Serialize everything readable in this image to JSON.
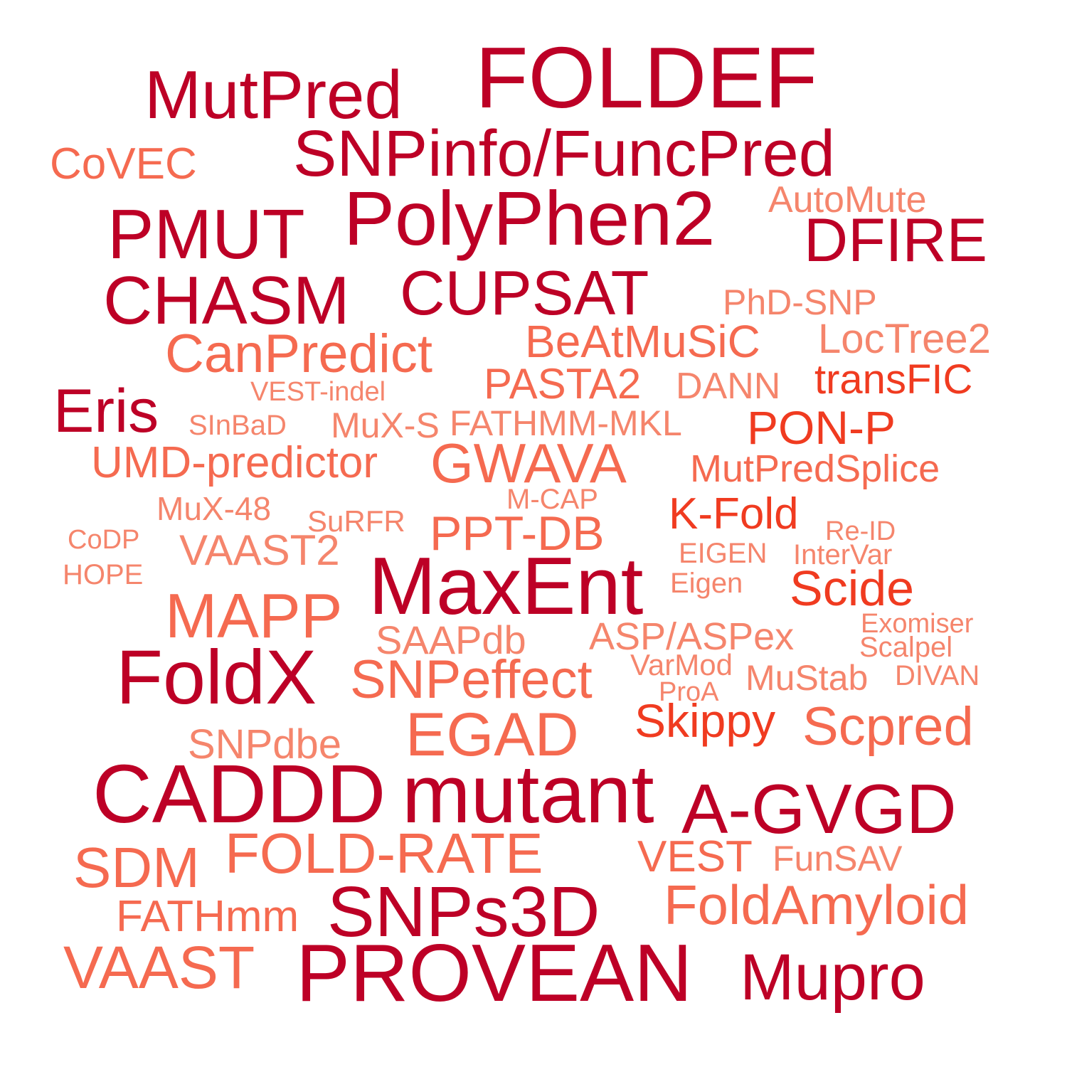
{
  "palette": {
    "dark": "#bd0026",
    "mid": "#f03b20",
    "light": "#f56a50",
    "pale": "#f5856c",
    "background": "#ffffff"
  },
  "words": [
    {
      "text": "FOLDEF",
      "tier": "dark"
    },
    {
      "text": "MutPred",
      "tier": "dark"
    },
    {
      "text": "SNPinfo/FuncPred",
      "tier": "dark"
    },
    {
      "text": "CoVEC",
      "tier": "light"
    },
    {
      "text": "AutoMute",
      "tier": "pale"
    },
    {
      "text": "PMUT",
      "tier": "dark"
    },
    {
      "text": "PolyPhen2",
      "tier": "dark"
    },
    {
      "text": "DFIRE",
      "tier": "dark"
    },
    {
      "text": "CHASM",
      "tier": "dark"
    },
    {
      "text": "CUPSAT",
      "tier": "dark"
    },
    {
      "text": "PhD-SNP",
      "tier": "pale"
    },
    {
      "text": "CanPredict",
      "tier": "light"
    },
    {
      "text": "BeAtMuSiC",
      "tier": "light"
    },
    {
      "text": "LocTree2",
      "tier": "pale"
    },
    {
      "text": "transFIC",
      "tier": "mid"
    },
    {
      "text": "PASTA2",
      "tier": "light"
    },
    {
      "text": "DANN",
      "tier": "pale"
    },
    {
      "text": "VEST-indel",
      "tier": "pale"
    },
    {
      "text": "Eris",
      "tier": "dark"
    },
    {
      "text": "SInBaD",
      "tier": "pale"
    },
    {
      "text": "MuX-S",
      "tier": "pale"
    },
    {
      "text": "FATHMM-MKL",
      "tier": "pale"
    },
    {
      "text": "PON-P",
      "tier": "mid"
    },
    {
      "text": "UMD-predictor",
      "tier": "light"
    },
    {
      "text": "GWAVA",
      "tier": "light"
    },
    {
      "text": "MutPredSplice",
      "tier": "light"
    },
    {
      "text": "M-CAP",
      "tier": "pale"
    },
    {
      "text": "MuX-48",
      "tier": "pale"
    },
    {
      "text": "SuRFR",
      "tier": "pale"
    },
    {
      "text": "PPT-DB",
      "tier": "light"
    },
    {
      "text": "K-Fold",
      "tier": "mid"
    },
    {
      "text": "Re-ID",
      "tier": "pale"
    },
    {
      "text": "CoDP",
      "tier": "pale"
    },
    {
      "text": "VAAST2",
      "tier": "pale"
    },
    {
      "text": "EIGEN",
      "tier": "pale"
    },
    {
      "text": "InterVar",
      "tier": "pale"
    },
    {
      "text": "HOPE",
      "tier": "pale"
    },
    {
      "text": "MaxEnt",
      "tier": "dark"
    },
    {
      "text": "Eigen",
      "tier": "pale"
    },
    {
      "text": "Scide",
      "tier": "mid"
    },
    {
      "text": "MAPP",
      "tier": "light"
    },
    {
      "text": "Exomiser",
      "tier": "pale"
    },
    {
      "text": "SAAPdb",
      "tier": "pale"
    },
    {
      "text": "ASP/ASPex",
      "tier": "pale"
    },
    {
      "text": "Scalpel",
      "tier": "pale"
    },
    {
      "text": "FoldX",
      "tier": "dark"
    },
    {
      "text": "VarMod",
      "tier": "pale"
    },
    {
      "text": "SNPeffect",
      "tier": "light"
    },
    {
      "text": "MuStab",
      "tier": "pale"
    },
    {
      "text": "DIVAN",
      "tier": "pale"
    },
    {
      "text": "ProA",
      "tier": "pale"
    },
    {
      "text": "Skippy",
      "tier": "mid"
    },
    {
      "text": "EGAD",
      "tier": "light"
    },
    {
      "text": "Scpred",
      "tier": "light"
    },
    {
      "text": "SNPdbe",
      "tier": "pale"
    },
    {
      "text": "CADDD",
      "tier": "dark"
    },
    {
      "text": "mutant",
      "tier": "dark"
    },
    {
      "text": "A-GVGD",
      "tier": "dark"
    },
    {
      "text": "SDM",
      "tier": "light"
    },
    {
      "text": "FOLD-RATE",
      "tier": "light"
    },
    {
      "text": "VEST",
      "tier": "light"
    },
    {
      "text": "FunSAV",
      "tier": "pale"
    },
    {
      "text": "SNPs3D",
      "tier": "dark"
    },
    {
      "text": "FoldAmyloid",
      "tier": "light"
    },
    {
      "text": "FATHmm",
      "tier": "light"
    },
    {
      "text": "VAAST",
      "tier": "light"
    },
    {
      "text": "PROVEAN",
      "tier": "dark"
    },
    {
      "text": "Mupro",
      "tier": "dark"
    }
  ]
}
